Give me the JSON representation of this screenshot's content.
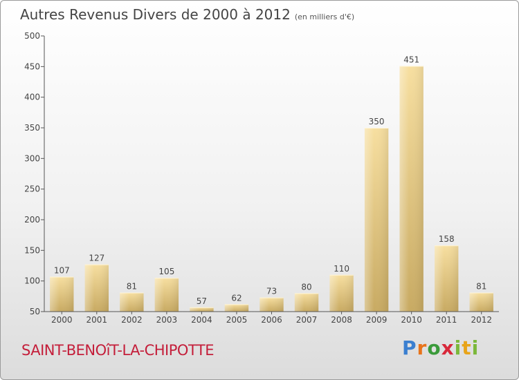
{
  "header": {
    "title": "Autres Revenus Divers de 2000 à 2012",
    "unit": "(en milliers d'€)"
  },
  "footer": {
    "place": "SAINT-BENOîT-LA-CHIPOTTE",
    "logo": "Proxiti"
  },
  "colors": {
    "bar_light": "#f7dfa0",
    "bar_dark": "#c8aa62",
    "axis": "#555555",
    "place": "#c41e3a"
  },
  "chart_data": {
    "type": "bar",
    "categories": [
      "2000",
      "2001",
      "2002",
      "2003",
      "2004",
      "2005",
      "2006",
      "2007",
      "2008",
      "2009",
      "2010",
      "2011",
      "2012"
    ],
    "values": [
      107,
      127,
      81,
      105,
      57,
      62,
      73,
      80,
      110,
      350,
      451,
      158,
      81
    ],
    "ylim": [
      50,
      500
    ],
    "yticks": [
      50,
      100,
      150,
      200,
      250,
      300,
      350,
      400,
      450,
      500
    ],
    "grid": false
  }
}
